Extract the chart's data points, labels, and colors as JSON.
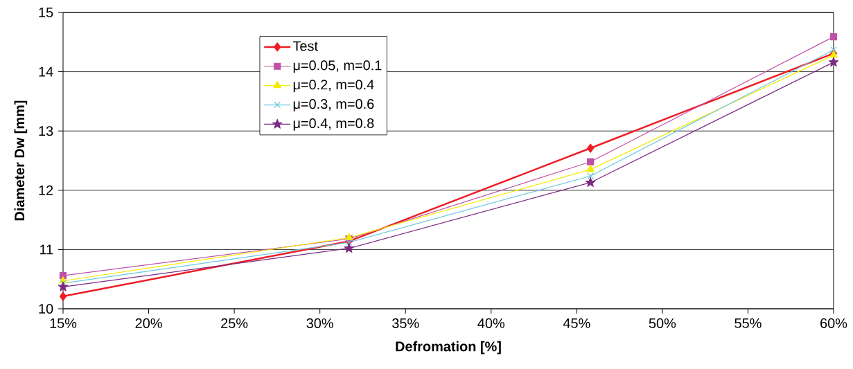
{
  "chart_data": {
    "type": "line",
    "xlabel": "Defromation [%]",
    "ylabel": "Diameter Dw [mm]",
    "x": [
      15,
      31.7,
      45.8,
      60
    ],
    "series": [
      {
        "name": "Test",
        "color": "#ee1c25",
        "marker": "diamond",
        "values": [
          10.21,
          11.14,
          12.71,
          14.31
        ]
      },
      {
        "name": "μ=0.05, m=0.1",
        "color": "#bf50a5",
        "marker": "square",
        "values": [
          10.56,
          11.18,
          12.48,
          14.59
        ]
      },
      {
        "name": "μ=0.2, m=0.4",
        "color": "#f2eb00",
        "marker": "triangle",
        "values": [
          10.47,
          11.2,
          12.35,
          14.28
        ]
      },
      {
        "name": "μ=0.3, m=0.6",
        "color": "#6cc8dc",
        "marker": "cross",
        "values": [
          10.43,
          11.12,
          12.24,
          14.37
        ]
      },
      {
        "name": "μ=0.4, m=0.8",
        "color": "#7b2a82",
        "marker": "star",
        "values": [
          10.37,
          11.02,
          12.13,
          14.16
        ]
      }
    ],
    "xlim": [
      15,
      60
    ],
    "ylim": [
      10,
      15
    ],
    "xticks": [
      {
        "value": 15,
        "label": "15%"
      },
      {
        "value": 20,
        "label": "20%"
      },
      {
        "value": 25,
        "label": "25%"
      },
      {
        "value": 30,
        "label": "30%"
      },
      {
        "value": 35,
        "label": "35%"
      },
      {
        "value": 40,
        "label": "40%"
      },
      {
        "value": 45,
        "label": "45%"
      },
      {
        "value": 50,
        "label": "50%"
      },
      {
        "value": 55,
        "label": "55%"
      },
      {
        "value": 60,
        "label": "60%"
      }
    ],
    "yticks": [
      10,
      11,
      12,
      13,
      14,
      15
    ],
    "grid": "y",
    "legend": "top left",
    "line_style": "solid"
  }
}
